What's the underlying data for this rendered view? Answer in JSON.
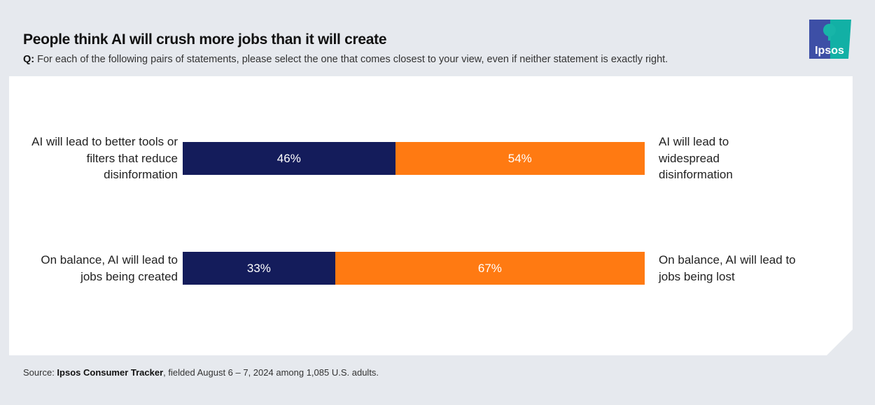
{
  "header": {
    "title": "People think AI will crush more jobs than it will create",
    "question_prefix": "Q:",
    "question": " For each of the following pairs of statements, please select the one that comes closest to your view, even if neither statement is exactly right."
  },
  "logo": {
    "text": "Ipsos",
    "colors": [
      "#3d4fa6",
      "#12b0a5"
    ]
  },
  "chart_data": {
    "type": "bar",
    "orientation": "horizontal-stacked-100",
    "colors": {
      "left": "#141c5b",
      "right": "#ff7a12"
    },
    "rows": [
      {
        "left_label": "AI will lead to better tools or filters that reduce disinformation",
        "left_value": 46,
        "left_text": "46%",
        "right_label": "AI will lead to widespread disinformation",
        "right_value": 54,
        "right_text": "54%"
      },
      {
        "left_label": "On balance, AI will lead to jobs being created",
        "left_value": 33,
        "left_text": "33%",
        "right_label": "On balance, AI will lead to jobs being lost",
        "right_value": 67,
        "right_text": "67%"
      }
    ]
  },
  "footer": {
    "source_prefix": "Source: ",
    "source_name": "Ipsos Consumer Tracker",
    "source_rest": ", fielded August 6 – 7, 2024 among 1,085 U.S. adults."
  }
}
